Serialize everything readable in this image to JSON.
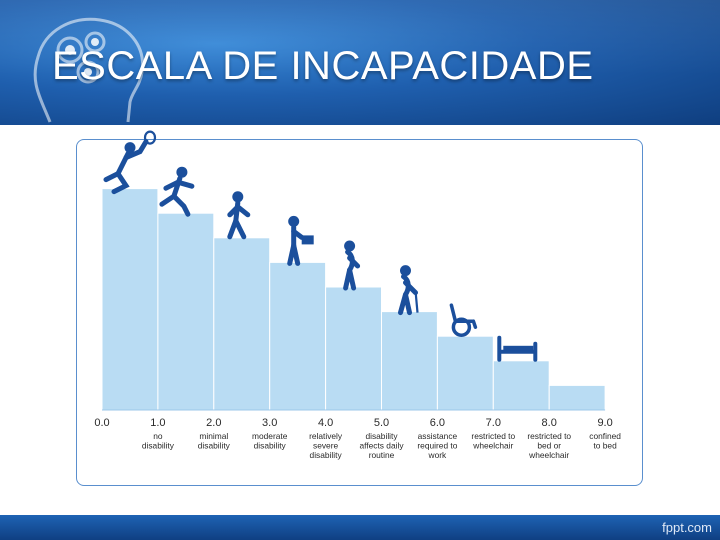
{
  "slide": {
    "title": "ESCALA DE INCAPACIDADE",
    "footer_brand": "fppt.com"
  },
  "colors": {
    "header_blue": "#1f5fae",
    "step_fill": "#b9dcf3",
    "step_line": "#ffffff",
    "icon_blue": "#1b4f9c",
    "frame": "#5a8fce",
    "label_text": "#2a2a2a"
  },
  "scale": {
    "ticks": [
      "0.0",
      "1.0",
      "2.0",
      "3.0",
      "4.0",
      "5.0",
      "6.0",
      "7.0",
      "8.0",
      "9.0"
    ],
    "labels": [
      [],
      [
        "no",
        "disability"
      ],
      [
        "minimal",
        "disability"
      ],
      [
        "moderate",
        "disability"
      ],
      [
        "relatively",
        "severe",
        "disability"
      ],
      [
        "disability",
        "affects daily",
        "routine"
      ],
      [
        "assistance",
        "required to",
        "work"
      ],
      [
        "restricted to",
        "wheelchair"
      ],
      [
        "restricted to",
        "bed or",
        "wheelchair"
      ],
      [
        "confined",
        "to bed"
      ]
    ],
    "step_levels": [
      9,
      8,
      7,
      6,
      5,
      4,
      3,
      2,
      1
    ],
    "icons": [
      "tennis-player-icon",
      "running-person-icon",
      "walking-person-icon",
      "person-with-briefcase-icon",
      "hunched-person-icon",
      "person-with-cane-icon",
      "wheelchair-icon",
      "bed-icon"
    ]
  }
}
